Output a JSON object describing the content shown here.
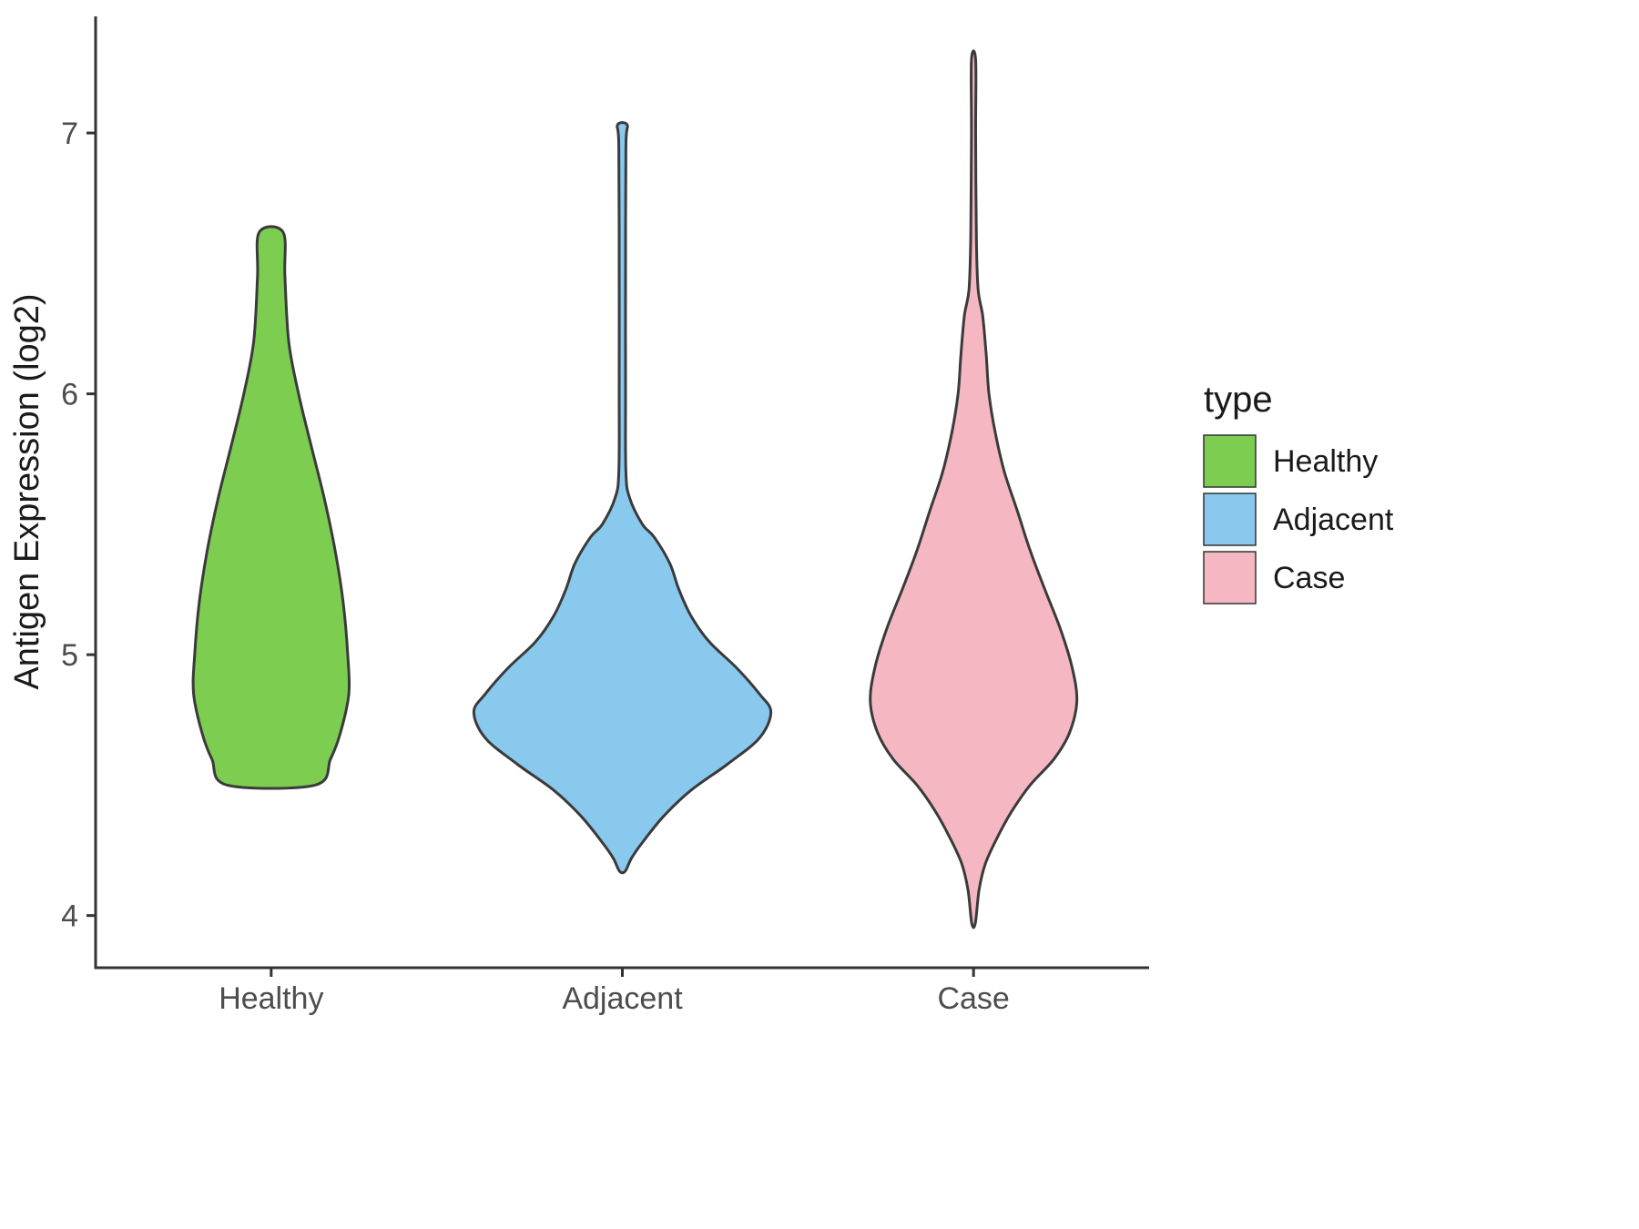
{
  "figure": {
    "background": "#FFFFFF",
    "axis_color": "#333333",
    "tick_text_color": "#4D4D4D",
    "title_text_color": "#1A1A1A"
  },
  "chart_data": {
    "type": "violin",
    "title": "",
    "xlabel": "",
    "ylabel": "Antigen Expression (log2)",
    "ylim": [
      3.8,
      7.44
    ],
    "yticks": [
      "4",
      "5",
      "6",
      "7"
    ],
    "ytick_values": [
      4,
      5,
      6,
      7
    ],
    "categories": [
      "Healthy",
      "Adjacent",
      "Case"
    ],
    "grid": false,
    "legend": {
      "title": "type",
      "position": "right",
      "items": [
        {
          "label": "Healthy",
          "color": "#7CCD50"
        },
        {
          "label": "Adjacent",
          "color": "#88C9ED"
        },
        {
          "label": "Case",
          "color": "#F5B8C3"
        }
      ]
    },
    "profile_units": "each profile point is [y_value_log2, half_width_as_fraction_of_category_slot]",
    "series": [
      {
        "name": "Healthy",
        "color": "#7CCD50",
        "outline": "#3A3A3A",
        "value_range": [
          4.5,
          6.62
        ],
        "profile": [
          [
            6.62,
            0.034
          ],
          [
            6.45,
            0.039
          ],
          [
            6.2,
            0.05
          ],
          [
            6.0,
            0.078
          ],
          [
            5.8,
            0.114
          ],
          [
            5.6,
            0.151
          ],
          [
            5.4,
            0.182
          ],
          [
            5.2,
            0.205
          ],
          [
            5.0,
            0.218
          ],
          [
            4.85,
            0.221
          ],
          [
            4.7,
            0.197
          ],
          [
            4.6,
            0.169
          ],
          [
            4.5,
            0.125
          ]
        ]
      },
      {
        "name": "Adjacent",
        "color": "#88C9ED",
        "outline": "#3A3A3A",
        "value_range": [
          4.17,
          7.03
        ],
        "profile": [
          [
            7.03,
            0.014
          ],
          [
            6.95,
            0.01
          ],
          [
            6.5,
            0.009
          ],
          [
            6.0,
            0.009
          ],
          [
            5.7,
            0.01
          ],
          [
            5.6,
            0.021
          ],
          [
            5.5,
            0.057
          ],
          [
            5.45,
            0.091
          ],
          [
            5.35,
            0.135
          ],
          [
            5.25,
            0.161
          ],
          [
            5.15,
            0.195
          ],
          [
            5.05,
            0.247
          ],
          [
            4.95,
            0.325
          ],
          [
            4.85,
            0.39
          ],
          [
            4.78,
            0.423
          ],
          [
            4.68,
            0.39
          ],
          [
            4.58,
            0.299
          ],
          [
            4.48,
            0.195
          ],
          [
            4.38,
            0.117
          ],
          [
            4.28,
            0.057
          ],
          [
            4.22,
            0.026
          ],
          [
            4.17,
            0.008
          ]
        ]
      },
      {
        "name": "Case",
        "color": "#F5B8C3",
        "outline": "#3A3A3A",
        "value_range": [
          3.97,
          7.28
        ],
        "profile": [
          [
            7.28,
            0.006
          ],
          [
            7.0,
            0.006
          ],
          [
            6.6,
            0.008
          ],
          [
            6.4,
            0.013
          ],
          [
            6.3,
            0.026
          ],
          [
            6.15,
            0.036
          ],
          [
            6.0,
            0.044
          ],
          [
            5.85,
            0.062
          ],
          [
            5.7,
            0.088
          ],
          [
            5.55,
            0.125
          ],
          [
            5.4,
            0.161
          ],
          [
            5.25,
            0.203
          ],
          [
            5.1,
            0.247
          ],
          [
            4.95,
            0.281
          ],
          [
            4.82,
            0.294
          ],
          [
            4.7,
            0.273
          ],
          [
            4.6,
            0.229
          ],
          [
            4.5,
            0.161
          ],
          [
            4.4,
            0.109
          ],
          [
            4.3,
            0.068
          ],
          [
            4.2,
            0.034
          ],
          [
            4.1,
            0.016
          ],
          [
            3.97,
            0.005
          ]
        ]
      }
    ]
  }
}
